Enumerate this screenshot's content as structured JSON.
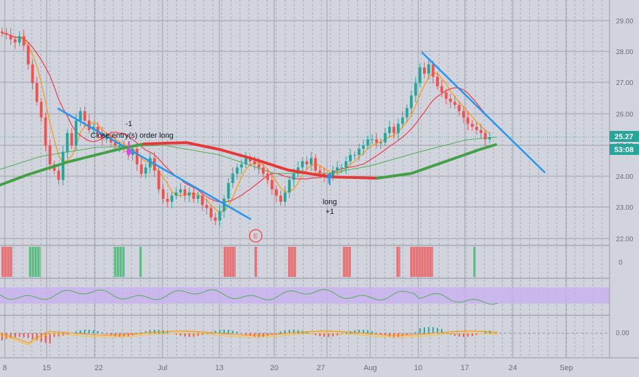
{
  "chart_data": {
    "type": "candlestick",
    "price_axis": {
      "ticks": [
        "29.00",
        "28.00",
        "27.00",
        "26.00",
        "25.00",
        "24.00",
        "23.00",
        "22.00"
      ],
      "last_price_label": "25.27",
      "countdown_label": "53:08"
    },
    "time_axis": {
      "ticks": [
        "8",
        "15",
        "22",
        "Jul",
        "13",
        "20",
        "27",
        "Aug",
        "10",
        "17",
        "24",
        "Sep"
      ]
    },
    "indicator_axes": {
      "pane1_tick": "0",
      "pane3_tick": "0.00"
    },
    "annotations": {
      "sell_count": "-1",
      "sell_text": "Close entry(s) order long",
      "buy_text": "long",
      "buy_count": "+1",
      "earnings_marker": "E"
    },
    "colors": {
      "up": "#26a69a",
      "down": "#ef5350",
      "trendline": "#2196f3",
      "ma_fast": "#ff9800",
      "ma_mid": "#f23645",
      "ma_long_thin": "#4caf50",
      "ma_long_up": "#43a047",
      "ma_long_down": "#e53935",
      "rsi": "#4caf50",
      "rsi_band": "#c8b0f0"
    },
    "close_series": [
      28.6,
      28.55,
      28.4,
      28.3,
      28.5,
      28.2,
      27.6,
      27.0,
      26.4,
      25.9,
      25.0,
      24.4,
      24.2,
      23.9,
      24.8,
      25.4,
      25.0,
      25.8,
      26.1,
      25.8,
      25.5,
      25.6,
      25.4,
      25.2,
      25.3,
      25.1,
      25.0,
      25.0,
      24.9,
      24.7,
      24.9,
      24.4,
      24.1,
      24.3,
      24.6,
      24.2,
      23.6,
      23.3,
      23.2,
      23.4,
      23.5,
      23.6,
      23.4,
      23.5,
      23.3,
      23.4,
      23.1,
      23.0,
      22.7,
      22.6,
      22.9,
      23.3,
      23.8,
      24.1,
      24.3,
      24.4,
      24.6,
      24.5,
      24.4,
      24.3,
      24.1,
      23.9,
      23.6,
      23.4,
      23.2,
      23.5,
      23.9,
      24.1,
      24.3,
      24.5,
      24.4,
      24.6,
      24.2,
      24.1,
      24.0,
      24.0,
      24.2,
      24.3,
      24.3,
      24.5,
      24.7,
      24.7,
      24.9,
      25.0,
      25.2,
      25.2,
      25.1,
      25.1,
      25.4,
      25.6,
      25.4,
      25.7,
      25.9,
      26.2,
      26.6,
      27.0,
      27.5,
      27.3,
      27.6,
      27.2,
      26.9,
      26.7,
      26.5,
      26.4,
      26.3,
      26.1,
      25.9,
      25.7,
      25.6,
      25.5,
      25.4,
      25.2,
      25.27
    ]
  }
}
